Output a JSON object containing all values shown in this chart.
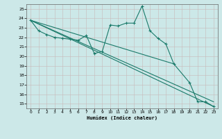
{
  "xlabel": "Humidex (Indice chaleur)",
  "ylabel": "",
  "bg_color": "#cce8e8",
  "line_color": "#1a7a6a",
  "xlim": [
    -0.5,
    23.5
  ],
  "ylim": [
    14.5,
    25.5
  ],
  "yticks": [
    15,
    16,
    17,
    18,
    19,
    20,
    21,
    22,
    23,
    24,
    25
  ],
  "xticks": [
    0,
    1,
    2,
    3,
    4,
    5,
    6,
    7,
    8,
    9,
    10,
    11,
    12,
    13,
    14,
    15,
    16,
    17,
    18,
    19,
    20,
    21,
    22,
    23
  ],
  "series": [
    {
      "x": [
        0,
        1,
        2,
        3,
        4,
        5,
        6,
        7,
        8,
        9,
        10,
        11,
        12,
        13,
        14,
        15,
        16,
        17,
        18,
        20,
        21,
        22,
        23
      ],
      "y": [
        23.8,
        22.7,
        22.3,
        22.0,
        21.9,
        21.8,
        21.7,
        22.2,
        20.3,
        20.5,
        23.3,
        23.2,
        23.5,
        23.5,
        25.3,
        22.7,
        21.9,
        21.3,
        19.2,
        17.2,
        15.2,
        15.2,
        14.7
      ]
    },
    {
      "x": [
        0,
        23
      ],
      "y": [
        23.8,
        15.2
      ]
    },
    {
      "x": [
        0,
        23
      ],
      "y": [
        23.8,
        14.7
      ]
    },
    {
      "x": [
        0,
        18
      ],
      "y": [
        23.8,
        19.2
      ]
    }
  ]
}
